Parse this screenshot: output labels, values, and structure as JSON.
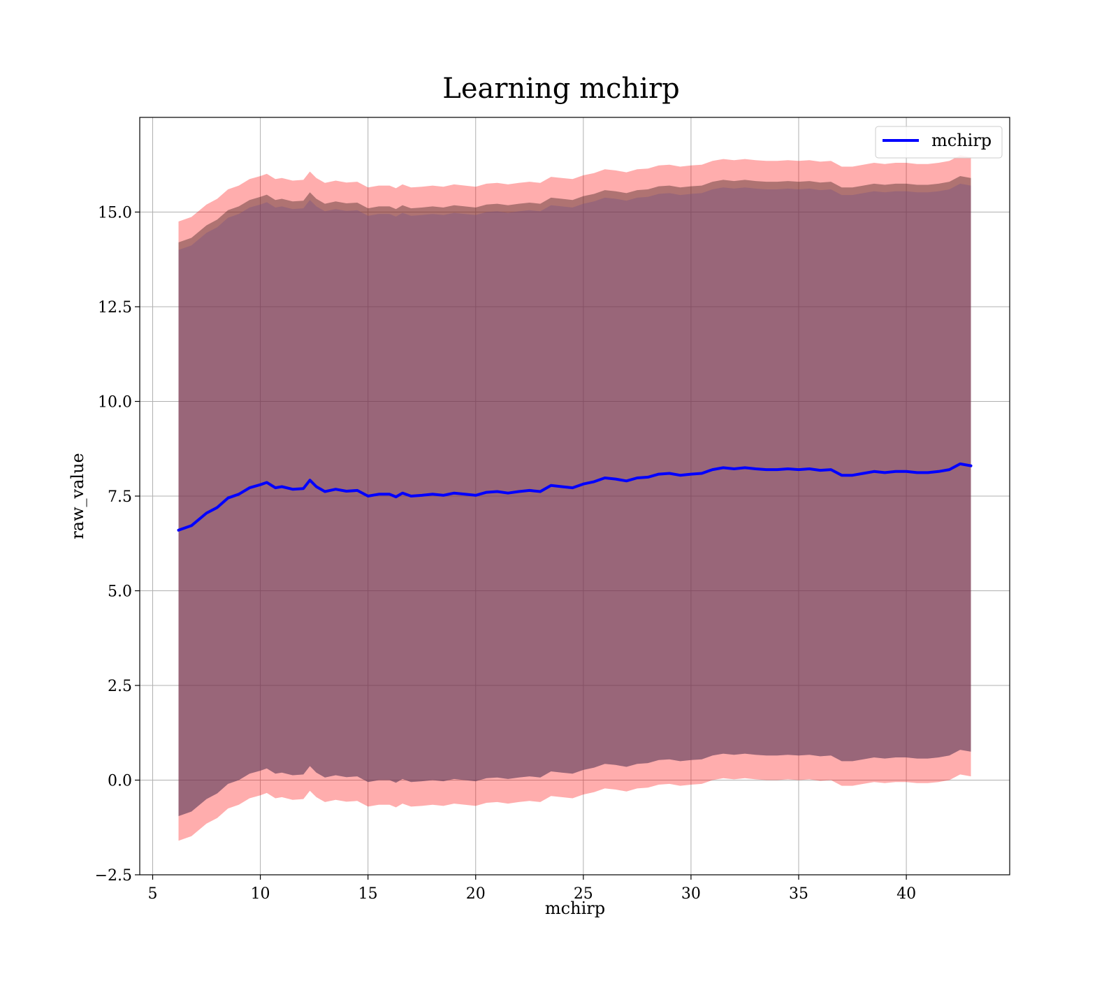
{
  "chart_data": {
    "type": "area",
    "title": "Learning mchirp",
    "xlabel": "mchirp",
    "ylabel": "raw_value",
    "xlim": [
      4.4,
      44.8
    ],
    "ylim": [
      -2.5,
      17.5
    ],
    "x_ticks": [
      5,
      10,
      15,
      20,
      25,
      30,
      35,
      40
    ],
    "x_tick_labels": [
      "5",
      "10",
      "15",
      "20",
      "25",
      "30",
      "35",
      "40"
    ],
    "y_ticks": [
      -2.5,
      0.0,
      2.5,
      5.0,
      7.5,
      10.0,
      12.5,
      15.0
    ],
    "y_tick_labels": [
      "−2.5",
      "0.0",
      "2.5",
      "5.0",
      "7.5",
      "10.0",
      "12.5",
      "15.0"
    ],
    "grid": true,
    "legend": {
      "position": "top-right",
      "entries": [
        {
          "label": "mchirp",
          "color": "#0000ff"
        }
      ]
    },
    "series": [
      {
        "name": "mchirp",
        "color": "#0000ff",
        "x": [
          6.2,
          6.8,
          7.5,
          8.0,
          8.5,
          9.0,
          9.5,
          10.0,
          10.3,
          10.7,
          11.0,
          11.5,
          12.0,
          12.3,
          12.6,
          13.0,
          13.5,
          14.0,
          14.5,
          15.0,
          15.5,
          16.0,
          16.3,
          16.6,
          17.0,
          17.5,
          18.0,
          18.5,
          19.0,
          19.5,
          20.0,
          20.5,
          21.0,
          21.5,
          22.0,
          22.5,
          23.0,
          23.5,
          24.0,
          24.5,
          25.0,
          25.5,
          26.0,
          26.5,
          27.0,
          27.5,
          28.0,
          28.5,
          29.0,
          29.5,
          30.0,
          30.5,
          31.0,
          31.5,
          32.0,
          32.5,
          33.0,
          33.5,
          34.0,
          34.5,
          35.0,
          35.5,
          36.0,
          36.5,
          37.0,
          37.5,
          38.0,
          38.5,
          39.0,
          39.5,
          40.0,
          40.5,
          41.0,
          41.5,
          42.0,
          42.5,
          43.0
        ],
        "values": [
          6.6,
          6.72,
          7.05,
          7.2,
          7.45,
          7.55,
          7.72,
          7.8,
          7.86,
          7.72,
          7.75,
          7.68,
          7.7,
          7.92,
          7.75,
          7.62,
          7.68,
          7.63,
          7.65,
          7.5,
          7.55,
          7.55,
          7.48,
          7.58,
          7.5,
          7.52,
          7.55,
          7.52,
          7.58,
          7.55,
          7.52,
          7.6,
          7.62,
          7.58,
          7.62,
          7.65,
          7.62,
          7.78,
          7.75,
          7.72,
          7.82,
          7.88,
          7.98,
          7.95,
          7.9,
          7.98,
          8.0,
          8.08,
          8.1,
          8.05,
          8.08,
          8.1,
          8.2,
          8.25,
          8.22,
          8.25,
          8.22,
          8.2,
          8.2,
          8.22,
          8.2,
          8.22,
          8.18,
          8.2,
          8.05,
          8.05,
          8.1,
          8.15,
          8.12,
          8.15,
          8.15,
          8.12,
          8.12,
          8.15,
          8.2,
          8.35,
          8.3
        ]
      }
    ],
    "bands": [
      {
        "fill": "#ff0000",
        "opacity": 0.32,
        "lower_offset": -8.2,
        "upper_offset": 8.15
      },
      {
        "fill": "#4d2d2a",
        "opacity": 0.45,
        "lower_offset": -7.55,
        "upper_offset": 7.6
      },
      {
        "fill": "#6e4a8a",
        "opacity": 0.32,
        "lower_offset": -7.55,
        "upper_offset": 7.4
      }
    ]
  }
}
